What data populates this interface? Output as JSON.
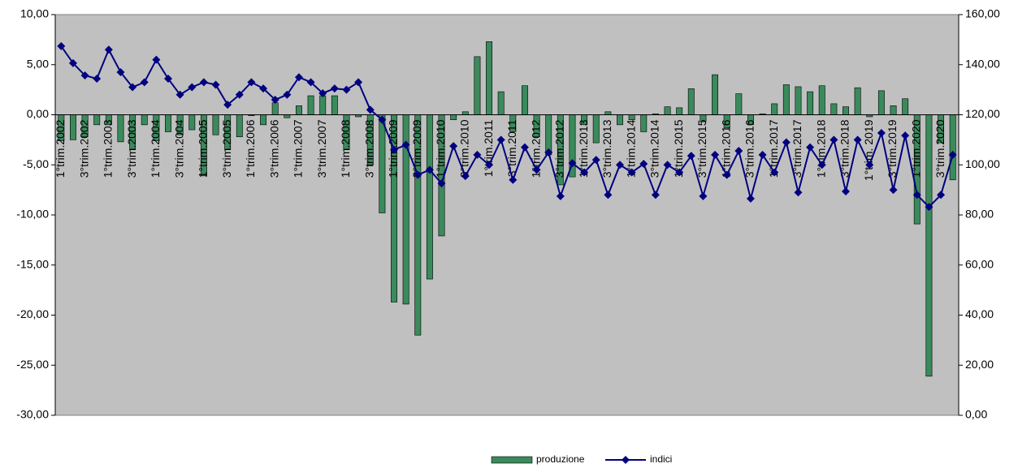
{
  "chart_data": {
    "type": "combo",
    "categories": [
      "1°trim.2002",
      null,
      "3°trim.2002",
      null,
      "1°trim.2003",
      null,
      "3°trim.2003",
      null,
      "1°trim.2004",
      null,
      "3°trim.2004",
      null,
      "1°trim.2005",
      null,
      "3°trim.2005",
      null,
      "1°trim.2006",
      null,
      "3°trim.2006",
      null,
      "1°trim.2007",
      null,
      "3°trim.2007",
      null,
      "1°trim.2008",
      null,
      "3°trim.2008",
      null,
      "1°trim.2009",
      null,
      "3°trim.2009",
      null,
      "1°trim.2010",
      null,
      "3°trim.2010",
      null,
      "1°trim.2011",
      null,
      "3°trim.2011",
      null,
      "1°trim.2012",
      null,
      "3°trim.2012",
      null,
      "1°trim.2013",
      null,
      "3°trim.2013",
      null,
      "1°trim.2014",
      null,
      "3°trim.2014",
      null,
      "1°trim.2015",
      null,
      "3°trim.2015",
      null,
      "1°trim.2016",
      null,
      "3°trim.2016",
      null,
      "1°trim.2017",
      null,
      "3°trim.2017",
      null,
      "1°trim.2018",
      null,
      "3°trim.2018",
      null,
      "1°trim. 2019",
      null,
      "3°trim.2019",
      null,
      "1°trim.2020",
      null,
      "3°trim.2020",
      null
    ],
    "series": [
      {
        "name": "produzione",
        "type": "bar",
        "color": "#3a8a5c",
        "values": [
          -2.6,
          -2.5,
          -2.2,
          -1.0,
          -1.0,
          -2.7,
          -3.5,
          -1.0,
          -2.6,
          -1.7,
          -2.0,
          -1.5,
          -6.1,
          -2.0,
          -3.5,
          -2.2,
          -0.1,
          -1.0,
          1.2,
          -0.3,
          0.9,
          1.9,
          1.9,
          1.9,
          -3.5,
          -0.2,
          -5.0,
          -9.8,
          -18.7,
          -18.9,
          -22.0,
          -16.4,
          -12.1,
          -0.5,
          0.3,
          5.8,
          7.3,
          2.3,
          -1.7,
          2.9,
          -2.2,
          -4.0,
          -7.0,
          -6.2,
          -1.0,
          -2.8,
          0.3,
          -1.0,
          -0.5,
          -1.7,
          0.1,
          0.8,
          0.7,
          2.6,
          -0.7,
          4.0,
          -1.3,
          2.1,
          -1.0,
          0.1,
          1.1,
          3.0,
          2.8,
          2.3,
          2.9,
          1.1,
          0.8,
          2.7,
          -0.2,
          2.4,
          0.9,
          1.6,
          -10.9,
          -26.1,
          -2.8,
          -6.5
        ]
      },
      {
        "name": "indici",
        "type": "line",
        "color": "#000080",
        "axis": "y2",
        "values": [
          147.4,
          140.6,
          135.7,
          134.4,
          146,
          137,
          131,
          133,
          142,
          134.4,
          128,
          131,
          133,
          132,
          124,
          128,
          133,
          130.5,
          126,
          128,
          135,
          133,
          128.6,
          130.5,
          130,
          133,
          122,
          118,
          106,
          108,
          96,
          98,
          92.6,
          107.5,
          95.5,
          104,
          100,
          110,
          94,
          107,
          98,
          105,
          87.5,
          100.7,
          97,
          102,
          88,
          100,
          97,
          100.4,
          88,
          100,
          97,
          103.6,
          87.5,
          104,
          96,
          105.6,
          86.5,
          104,
          97,
          109,
          89,
          107,
          100,
          110,
          89.4,
          110,
          100,
          112.7,
          90,
          111.7,
          88,
          83.2,
          88,
          104
        ]
      }
    ],
    "ylim": [
      -30,
      10
    ],
    "yticks": [
      {
        "value": -30,
        "label": "-30,00"
      },
      {
        "value": -25,
        "label": "-25,00"
      },
      {
        "value": -20,
        "label": "-20,00"
      },
      {
        "value": -15,
        "label": "-15,00"
      },
      {
        "value": -10,
        "label": "-10,00"
      },
      {
        "value": -5,
        "label": "-5,00"
      },
      {
        "value": 0,
        "label": "0,00"
      },
      {
        "value": 5,
        "label": "5,00"
      },
      {
        "value": 10,
        "label": "10,00"
      }
    ],
    "y2lim": [
      0,
      160
    ],
    "y2ticks": [
      {
        "value": 0,
        "label": "0,00"
      },
      {
        "value": 20,
        "label": "20,00"
      },
      {
        "value": 40,
        "label": "40,00"
      },
      {
        "value": 60,
        "label": "60,00"
      },
      {
        "value": 80,
        "label": "80,00"
      },
      {
        "value": 100,
        "label": "100,00"
      },
      {
        "value": 120,
        "label": "120,00"
      },
      {
        "value": 140,
        "label": "140,00"
      },
      {
        "value": 160,
        "label": "160,00"
      }
    ],
    "grid": false,
    "legend": "bottom"
  }
}
